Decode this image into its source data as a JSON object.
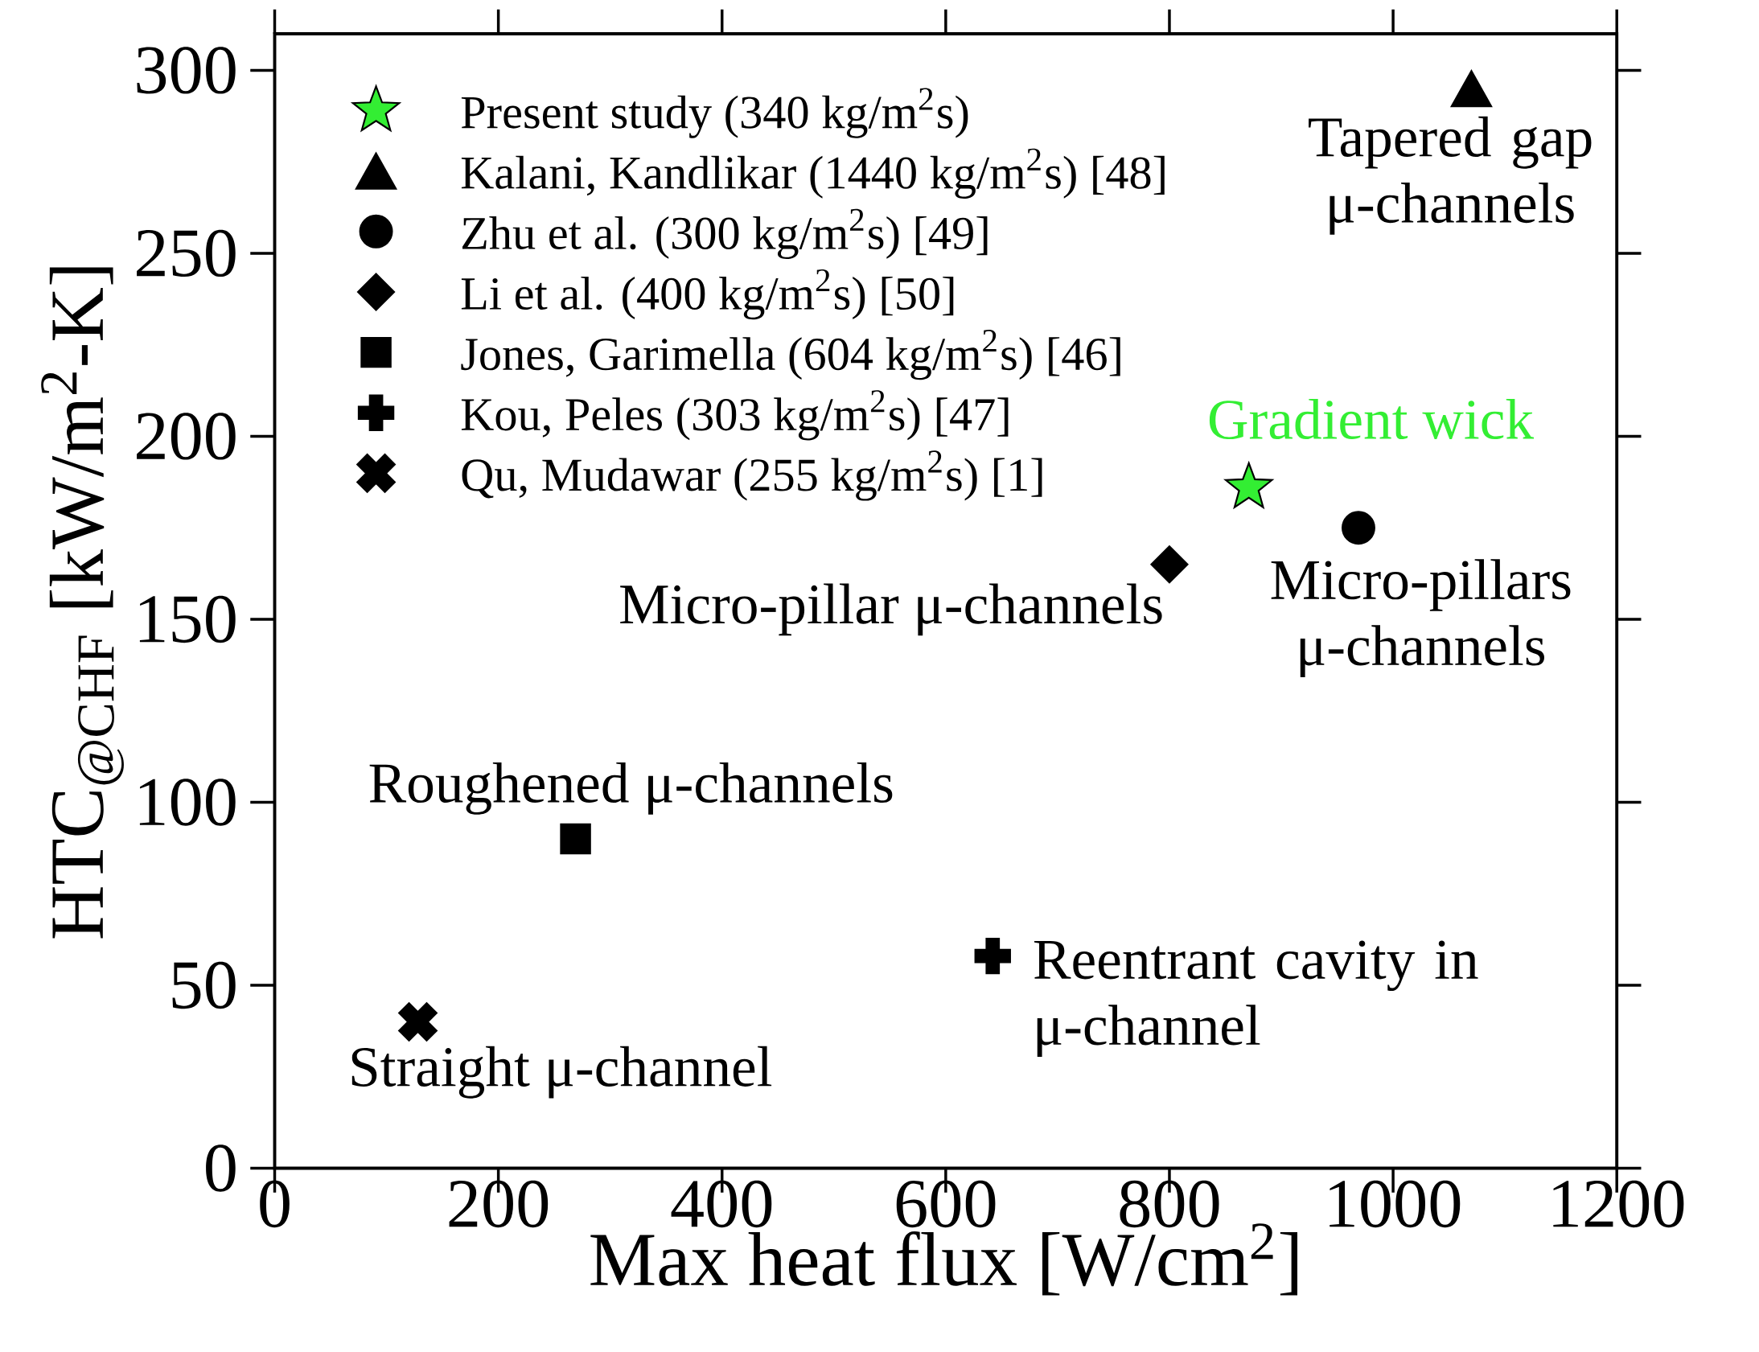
{
  "chart_data": {
    "type": "scatter",
    "xlabel": "Max heat flux [W/cm$^{2}$]",
    "ylabel": "HTC$_{@CHF}$ [kW/m$^{2}$-K]",
    "xlim": [
      0,
      1200
    ],
    "xticks": [
      0,
      200,
      400,
      600,
      800,
      1000,
      1200
    ],
    "ylim": [
      0,
      310
    ],
    "yticks": [
      0,
      50,
      100,
      150,
      200,
      250,
      300
    ],
    "grid": false,
    "legend": "top left",
    "series": [
      {
        "name": "Present study (340 kg/m$^{2}$s)",
        "color": "#33ee33",
        "marker": "star",
        "x": [
          871
        ],
        "values": [
          186
        ]
      },
      {
        "name": "Kalani, Kandlikar (1440 kg/m$^{2}$s) [48]",
        "color": "#000000",
        "marker": "triangle",
        "x": [
          1070
        ],
        "values": [
          295
        ]
      },
      {
        "name": "Zhu et al. (300 kg/m$^{2}$s) [49]",
        "color": "#000000",
        "marker": "circle",
        "x": [
          969
        ],
        "values": [
          175
        ]
      },
      {
        "name": "Li et al. (400 kg/m$^{2}$s) [50]",
        "color": "#000000",
        "marker": "diamond",
        "x": [
          800
        ],
        "values": [
          165
        ]
      },
      {
        "name": "Jones, Garimella (604 kg/m$^{2}$s) [46]",
        "color": "#000000",
        "marker": "square",
        "x": [
          269
        ],
        "values": [
          90
        ]
      },
      {
        "name": "Kou, Peles (303 kg/m$^{2}$s) [47]",
        "color": "#000000",
        "marker": "plus",
        "x": [
          642
        ],
        "values": [
          58
        ]
      },
      {
        "name": "Qu, Mudawar (255 kg/m$^{2}$s) [1]",
        "color": "#000000",
        "marker": "cross",
        "x": [
          128
        ],
        "values": [
          40
        ]
      }
    ],
    "annotations": [
      {
        "text": "Gradient wick",
        "x": 871,
        "y": 186
      },
      {
        "text": "Tapered gap μ-channels",
        "x": 1070,
        "y": 295
      },
      {
        "text": "Micro-pillars μ-channels",
        "x": 969,
        "y": 175
      },
      {
        "text": "Micro-pillar μ-channels",
        "x": 800,
        "y": 165
      },
      {
        "text": "Roughened μ-channels",
        "x": 269,
        "y": 90
      },
      {
        "text": "Reentrant cavity in μ-channel",
        "x": 642,
        "y": 58
      },
      {
        "text": "Straight μ-channel",
        "x": 128,
        "y": 40
      }
    ]
  }
}
